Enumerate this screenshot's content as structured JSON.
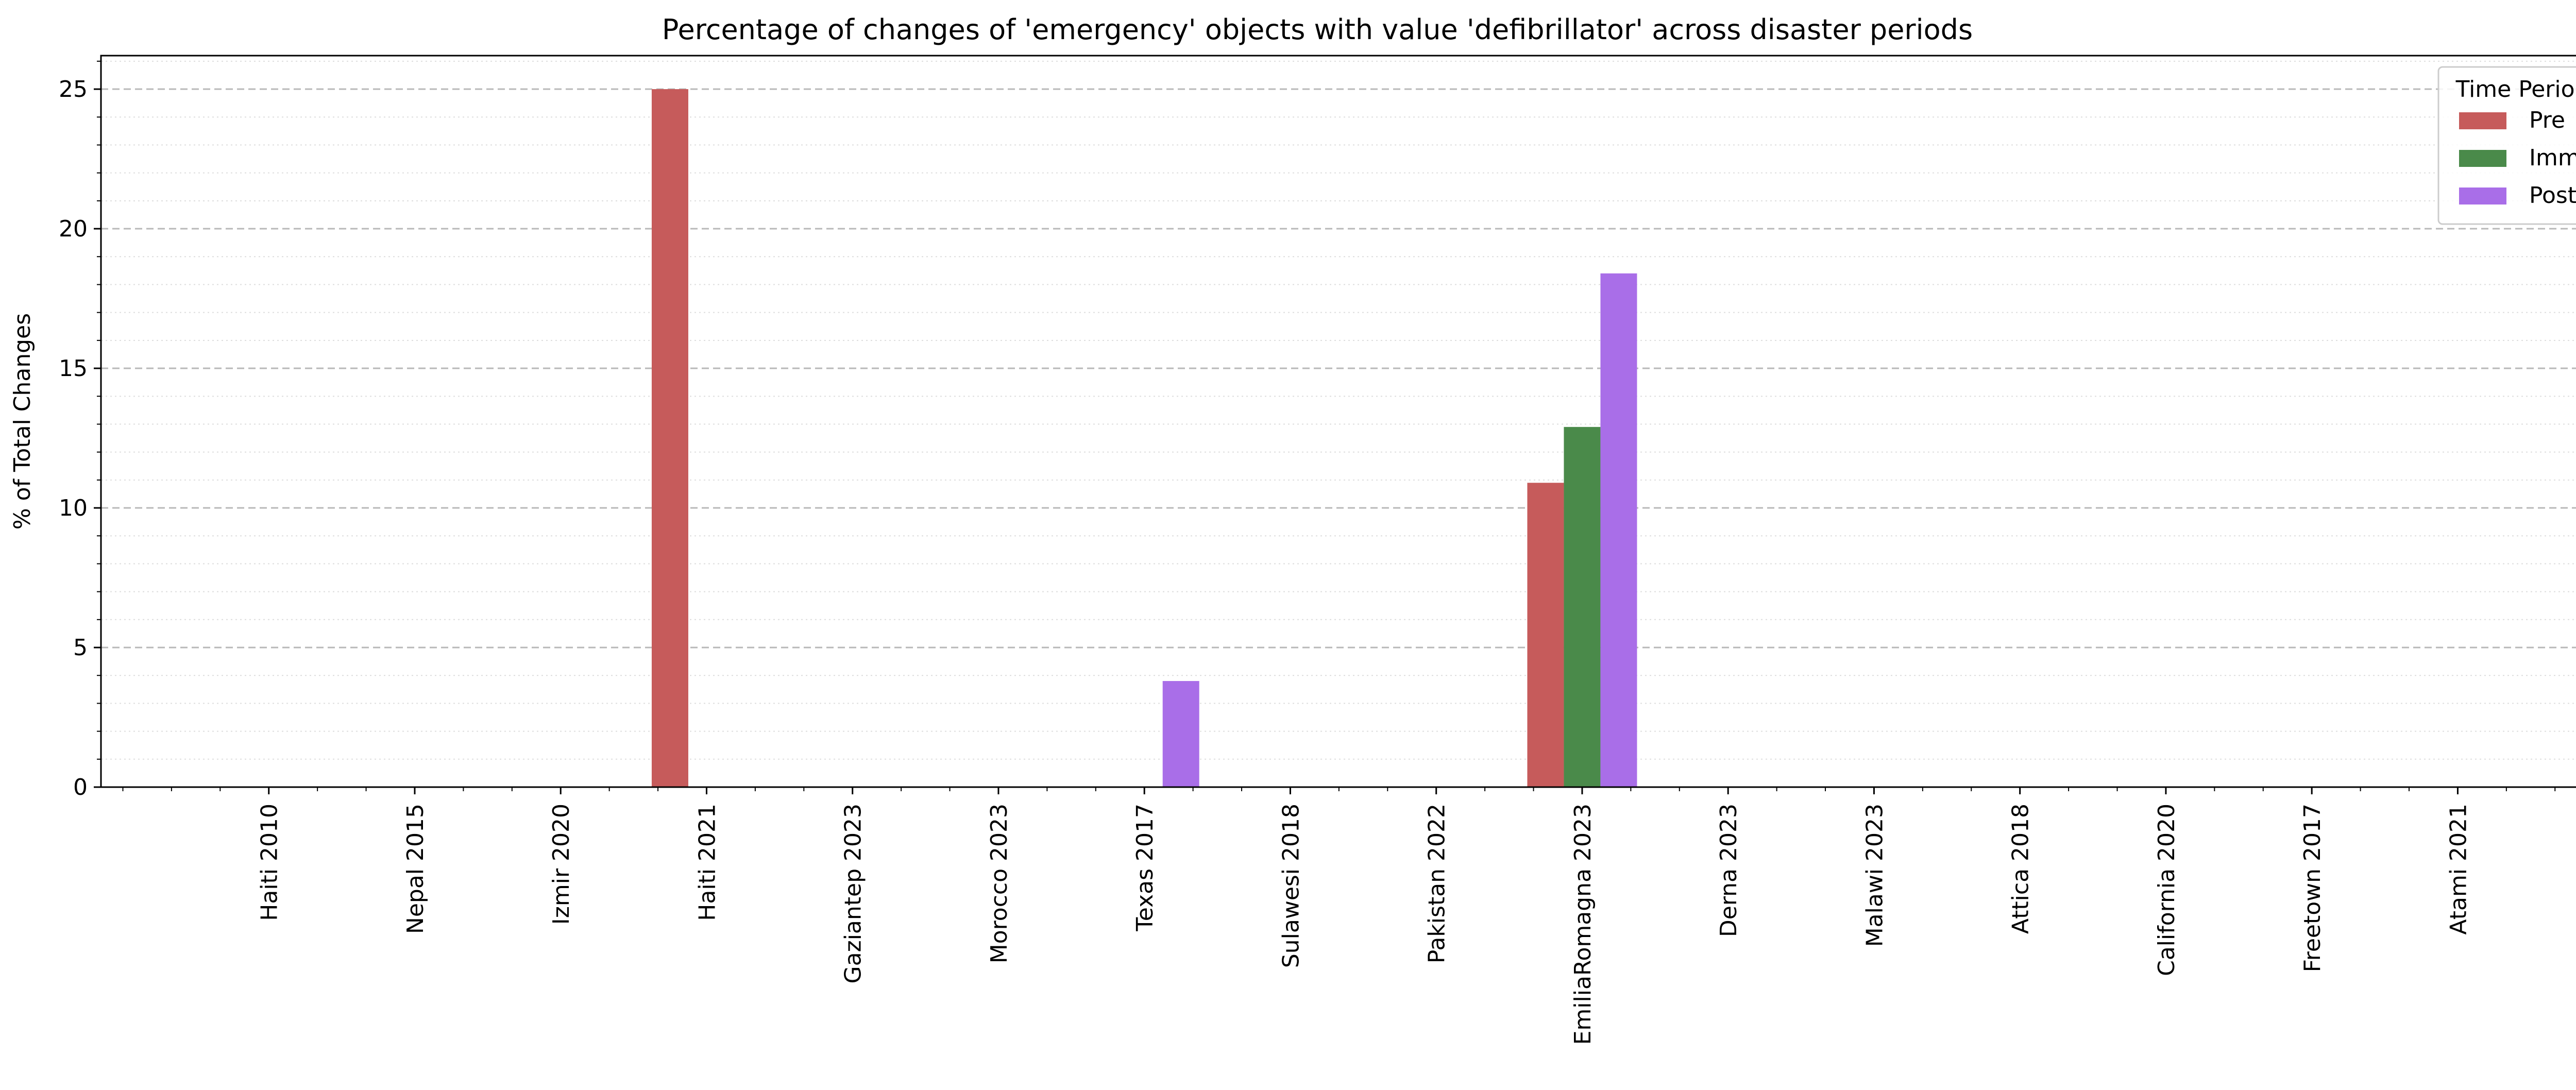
{
  "chart_data": {
    "type": "bar",
    "title": "Percentage of changes of 'emergency' objects with value 'defibrillator' across disaster periods",
    "xlabel": "",
    "ylabel": "% of Total Changes",
    "ylim": [
      0,
      26.2
    ],
    "yticks": [
      "0",
      "5",
      "10",
      "15",
      "20",
      "25"
    ],
    "grid": "y-axis, dashed major and dotted minor",
    "legend": {
      "title": "Time Period",
      "placement": "top-right"
    },
    "categories": [
      "Haiti 2010",
      "Nepal 2015",
      "Izmir 2020",
      "Haiti 2021",
      "Gaziantep 2023",
      "Morocco 2023",
      "Texas 2017",
      "Sulawesi 2018",
      "Pakistan 2022",
      "EmiliaRomagna 2023",
      "Derna 2023",
      "Malawi 2023",
      "Attica 2018",
      "California 2020",
      "Freetown 2017",
      "Atami 2021"
    ],
    "series": [
      {
        "name": "Pre",
        "color": "#c65b5b",
        "values": [
          0,
          0,
          0,
          25.0,
          0,
          0,
          0,
          0,
          0,
          10.9,
          0,
          0,
          0,
          0,
          0,
          0
        ]
      },
      {
        "name": "Imm",
        "color": "#4a8a4a",
        "values": [
          0,
          0,
          0,
          0,
          0,
          0,
          0,
          0,
          0,
          12.9,
          0,
          0,
          0,
          0,
          0,
          0
        ]
      },
      {
        "name": "Post",
        "color": "#a96ee8",
        "values": [
          0,
          0,
          0,
          0,
          0,
          0,
          3.8,
          0,
          0,
          18.4,
          0,
          0,
          0,
          0,
          0,
          0
        ]
      }
    ]
  }
}
